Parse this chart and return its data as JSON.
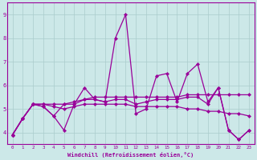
{
  "title": "",
  "xlabel": "Windchill (Refroidissement éolien,°C)",
  "ylabel": "",
  "xlim": [
    -0.5,
    23.5
  ],
  "ylim": [
    3.5,
    9.5
  ],
  "xticks": [
    0,
    1,
    2,
    3,
    4,
    5,
    6,
    7,
    8,
    9,
    10,
    11,
    12,
    13,
    14,
    15,
    16,
    17,
    18,
    19,
    20,
    21,
    22,
    23
  ],
  "yticks": [
    4,
    5,
    6,
    7,
    8,
    9
  ],
  "background_color": "#cce8e8",
  "grid_color": "#aacccc",
  "line_color": "#990099",
  "series": [
    [
      3.9,
      4.6,
      5.2,
      5.1,
      4.7,
      4.1,
      5.2,
      5.9,
      5.4,
      5.3,
      8.0,
      9.0,
      4.8,
      5.0,
      6.4,
      6.5,
      5.3,
      6.5,
      6.9,
      5.3,
      5.9,
      4.1,
      3.7,
      4.1
    ],
    [
      3.9,
      4.6,
      5.2,
      5.2,
      5.1,
      5.0,
      5.1,
      5.2,
      5.2,
      5.2,
      5.2,
      5.2,
      5.1,
      5.1,
      5.1,
      5.1,
      5.1,
      5.0,
      5.0,
      4.9,
      4.9,
      4.8,
      4.8,
      4.7
    ],
    [
      3.9,
      4.6,
      5.2,
      5.2,
      5.2,
      5.2,
      5.3,
      5.4,
      5.5,
      5.5,
      5.5,
      5.5,
      5.5,
      5.5,
      5.5,
      5.5,
      5.5,
      5.6,
      5.6,
      5.6,
      5.6,
      5.6,
      5.6,
      5.6
    ],
    [
      3.9,
      4.6,
      5.2,
      5.1,
      4.7,
      5.2,
      5.2,
      5.4,
      5.4,
      5.3,
      5.4,
      5.4,
      5.2,
      5.3,
      5.4,
      5.4,
      5.4,
      5.5,
      5.5,
      5.2,
      5.9,
      4.1,
      3.7,
      4.1
    ]
  ]
}
